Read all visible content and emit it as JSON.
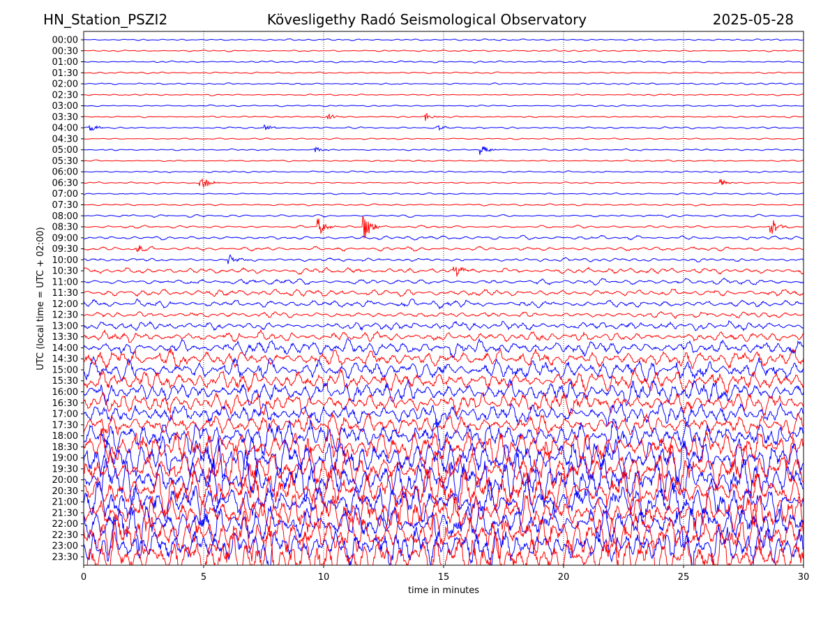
{
  "chart_data": {
    "type": "line",
    "title_left": "HN_Station_PSZI2",
    "title_center": "Kövesligethy Radó Seismological Observatory",
    "title_right": "2025-05-28",
    "xlabel": "time in minutes",
    "ylabel": "UTC (local time = UTC + 02:00)",
    "xlim": [
      0,
      30
    ],
    "xticks": [
      "0",
      "5",
      "10",
      "15",
      "20",
      "25",
      "30"
    ],
    "grid": "vertical dotted lines at 5-minute ticks",
    "row_labels": [
      "00:00",
      "00:30",
      "01:00",
      "01:30",
      "02:00",
      "02:30",
      "03:00",
      "03:30",
      "04:00",
      "04:30",
      "05:00",
      "05:30",
      "06:00",
      "06:30",
      "07:00",
      "07:30",
      "08:00",
      "08:30",
      "09:00",
      "09:30",
      "10:00",
      "10:30",
      "11:00",
      "11:30",
      "12:00",
      "12:30",
      "13:00",
      "13:30",
      "14:00",
      "14:30",
      "15:00",
      "15:30",
      "16:00",
      "16:30",
      "17:00",
      "17:30",
      "18:00",
      "18:30",
      "19:00",
      "19:30",
      "20:00",
      "20:30",
      "21:00",
      "21:30",
      "22:00",
      "22:30",
      "23:00",
      "23:30"
    ],
    "row_colors": [
      "#0000ff",
      "#ff0000"
    ],
    "relative_amplitude": [
      0.05,
      0.05,
      0.06,
      0.05,
      0.05,
      0.05,
      0.05,
      0.05,
      0.06,
      0.05,
      0.06,
      0.05,
      0.05,
      0.05,
      0.05,
      0.06,
      0.08,
      0.08,
      0.12,
      0.12,
      0.1,
      0.18,
      0.18,
      0.22,
      0.22,
      0.2,
      0.25,
      0.3,
      0.45,
      0.55,
      0.6,
      0.6,
      0.7,
      0.65,
      0.6,
      0.7,
      0.9,
      1.1,
      1.3,
      1.3,
      1.3,
      1.2,
      1.2,
      1.2,
      1.2,
      1.3,
      1.3,
      1.5
    ],
    "events": [
      {
        "row": 7,
        "minute": 10.2,
        "amplitude": 0.3
      },
      {
        "row": 7,
        "minute": 14.3,
        "amplitude": 0.4
      },
      {
        "row": 8,
        "minute": 0.3,
        "amplitude": 0.3
      },
      {
        "row": 8,
        "minute": 7.6,
        "amplitude": 0.3
      },
      {
        "row": 8,
        "minute": 14.8,
        "amplitude": 0.25
      },
      {
        "row": 10,
        "minute": 16.6,
        "amplitude": 0.45
      },
      {
        "row": 10,
        "minute": 9.7,
        "amplitude": 0.25
      },
      {
        "row": 13,
        "minute": 4.9,
        "amplitude": 0.8
      },
      {
        "row": 13,
        "minute": 26.6,
        "amplitude": 0.3
      },
      {
        "row": 17,
        "minute": 9.8,
        "amplitude": 0.8
      },
      {
        "row": 17,
        "minute": 11.7,
        "amplitude": 1.4
      },
      {
        "row": 17,
        "minute": 28.7,
        "amplitude": 0.8
      },
      {
        "row": 19,
        "minute": 2.3,
        "amplitude": 0.35
      },
      {
        "row": 20,
        "minute": 6.1,
        "amplitude": 0.4
      },
      {
        "row": 21,
        "minute": 15.5,
        "amplitude": 0.7
      }
    ]
  }
}
